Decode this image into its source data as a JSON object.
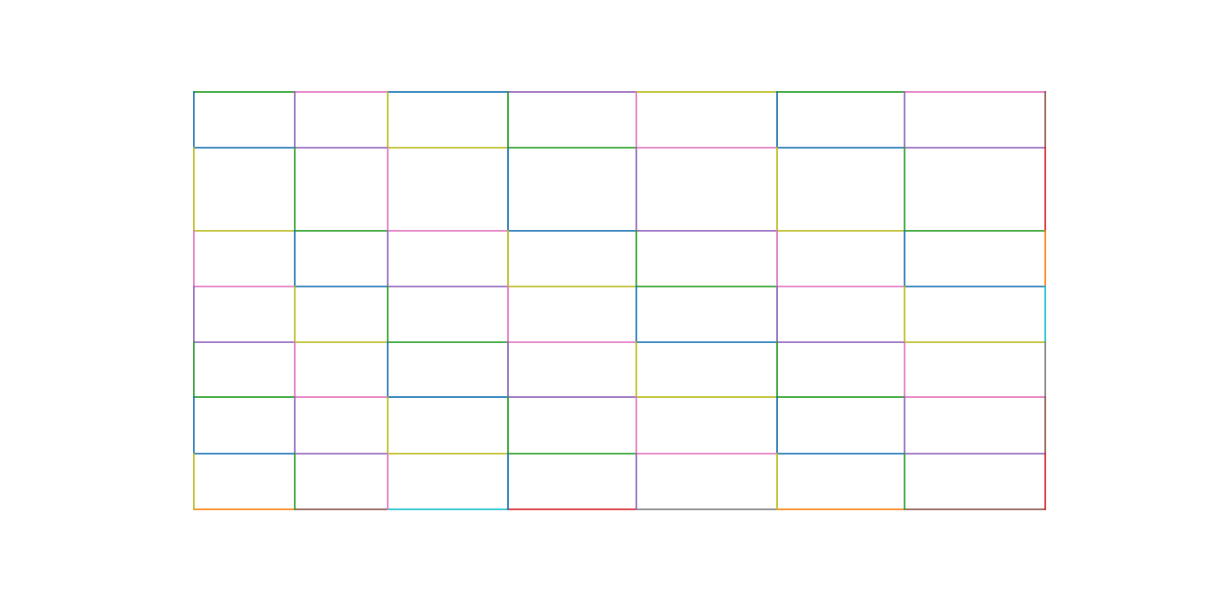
{
  "palette": {
    "blue": "#1f77b4",
    "orange": "#ff7f0e",
    "green": "#2ca02c",
    "red": "#d62728",
    "purple": "#9467bd",
    "brown": "#8c564b",
    "pink": "#e377c2",
    "gray": "#7f7f7f",
    "olive": "#bcbd22",
    "cyan": "#17becf"
  },
  "grid": {
    "rows": 7,
    "columns": 7,
    "horizontal_edges": [
      [
        "green",
        "pink",
        "blue",
        "purple",
        "olive",
        "green",
        "pink"
      ],
      [
        "blue",
        "purple",
        "olive",
        "green",
        "pink",
        "blue",
        "purple"
      ],
      [
        "olive",
        "green",
        "pink",
        "blue",
        "purple",
        "olive",
        "green"
      ],
      [
        "pink",
        "blue",
        "purple",
        "olive",
        "green",
        "pink",
        "blue"
      ],
      [
        "purple",
        "olive",
        "green",
        "pink",
        "blue",
        "purple",
        "olive"
      ],
      [
        "green",
        "pink",
        "blue",
        "purple",
        "olive",
        "green",
        "pink"
      ],
      [
        "blue",
        "purple",
        "olive",
        "green",
        "pink",
        "blue",
        "purple"
      ],
      [
        "orange",
        "brown",
        "cyan",
        "red",
        "gray",
        "orange",
        "brown"
      ]
    ],
    "vertical_edges": [
      [
        "blue",
        "olive",
        "pink",
        "purple",
        "green",
        "blue",
        "olive"
      ],
      [
        "purple",
        "green",
        "blue",
        "olive",
        "pink",
        "purple",
        "green"
      ],
      [
        "olive",
        "pink",
        "purple",
        "green",
        "blue",
        "olive",
        "pink"
      ],
      [
        "green",
        "blue",
        "olive",
        "pink",
        "purple",
        "green",
        "blue"
      ],
      [
        "pink",
        "purple",
        "green",
        "blue",
        "olive",
        "pink",
        "purple"
      ],
      [
        "blue",
        "olive",
        "pink",
        "purple",
        "green",
        "blue",
        "olive"
      ],
      [
        "purple",
        "green",
        "blue",
        "olive",
        "pink",
        "purple",
        "green"
      ],
      [
        "brown",
        "red",
        "orange",
        "cyan",
        "gray",
        "brown",
        "red"
      ]
    ]
  }
}
